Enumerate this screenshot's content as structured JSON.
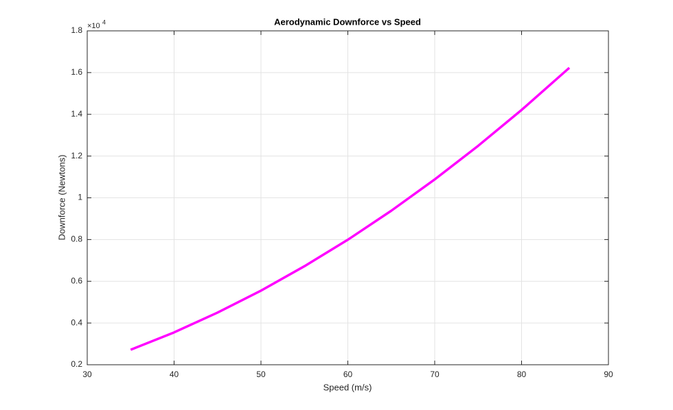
{
  "chart_data": {
    "type": "line",
    "title": "Aerodynamic Downforce vs Speed",
    "x_label": "Speed (m/s)",
    "y_label": "Downforce (Newtons)",
    "y_scale_base": "×10",
    "y_scale_exponent": "4",
    "x": [
      35,
      40,
      45,
      50,
      55,
      60,
      65,
      70,
      75,
      80,
      85.5
    ],
    "series": [
      {
        "name": "Downforce",
        "color": "#ff00ff",
        "values": [
          0.272,
          0.355,
          0.45,
          0.555,
          0.672,
          0.799,
          0.938,
          1.088,
          1.249,
          1.421,
          1.623
        ]
      }
    ],
    "xlim": [
      30,
      90
    ],
    "xticks": [
      30,
      40,
      50,
      60,
      70,
      80,
      90
    ],
    "ylim": [
      0.2,
      1.8
    ],
    "yticks": [
      0.2,
      0.4,
      0.6,
      0.8,
      1,
      1.2,
      1.4,
      1.6,
      1.8
    ],
    "grid": true
  }
}
